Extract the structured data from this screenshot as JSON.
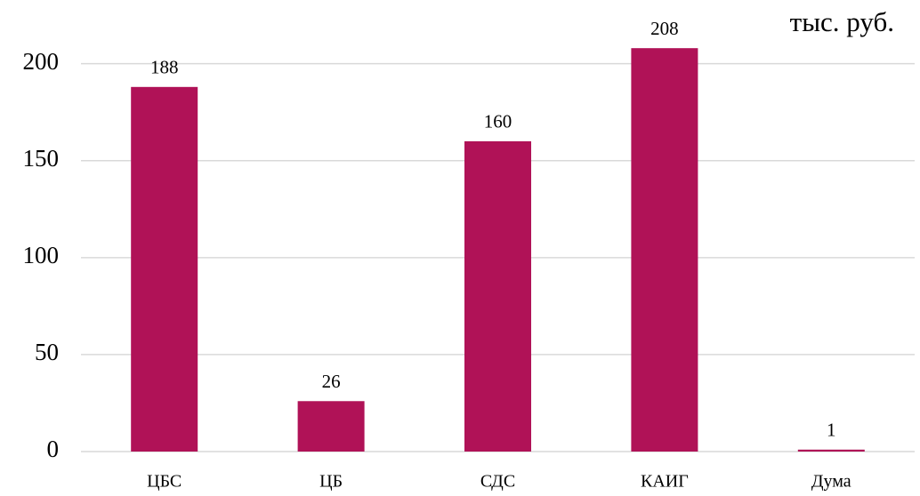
{
  "chart_data": {
    "type": "bar",
    "unit_label": "тыс. руб.",
    "categories": [
      "ЦБС",
      "ЦБ",
      "СДС",
      "КАИГ",
      "Дума"
    ],
    "values": [
      188,
      26,
      160,
      208,
      1
    ],
    "color": "#b01257",
    "ylim": [
      0,
      220
    ],
    "yticks": [
      0,
      50,
      100,
      150,
      200
    ],
    "grid": true
  }
}
